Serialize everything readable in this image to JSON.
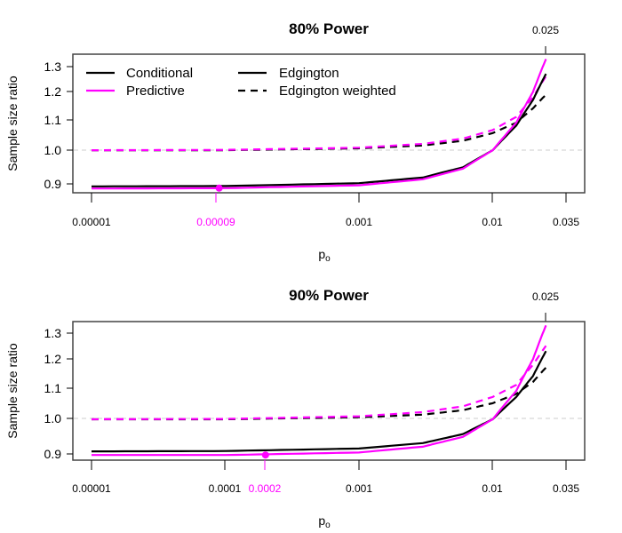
{
  "colors": {
    "conditional": "#000000",
    "predictive": "#ff00ff",
    "reference_line": "#cccccc",
    "frame": "#444444"
  },
  "legend": {
    "items": [
      {
        "label": "Conditional",
        "color": "#000000",
        "style": "solid"
      },
      {
        "label": "Predictive",
        "color": "#ff00ff",
        "style": "solid"
      },
      {
        "label": "Edgington",
        "color": "#000000",
        "style": "solid"
      },
      {
        "label": "Edgington weighted",
        "color": "#000000",
        "style": "dashed"
      }
    ]
  },
  "panels": [
    {
      "title": "80% Power",
      "top_tick_label": "0.025",
      "ylabel": "Sample size ratio",
      "xlabel": "p",
      "xlabel_sub": "o",
      "yticks": [
        "1.3",
        "1.2",
        "1.1",
        "1.0",
        "0.9"
      ],
      "xticks": [
        "0.00001",
        "0.00009",
        "0.001",
        "0.01",
        "0.035"
      ],
      "highlight_tick": "0.00009"
    },
    {
      "title": "90% Power",
      "top_tick_label": "0.025",
      "ylabel": "Sample size ratio",
      "xlabel": "p",
      "xlabel_sub": "o",
      "yticks": [
        "1.3",
        "1.2",
        "1.1",
        "1.0",
        "0.9"
      ],
      "xticks": [
        "0.00001",
        "0.0001",
        "0.0002",
        "0.001",
        "0.01",
        "0.035"
      ],
      "highlight_tick": "0.0002"
    }
  ],
  "chart_data": [
    {
      "type": "line",
      "title": "80% Power",
      "xlabel": "p_o",
      "ylabel": "Sample size ratio",
      "xscale": "log",
      "yscale": "log",
      "xlim": [
        1e-05,
        0.035
      ],
      "ylim": [
        0.88,
        1.33
      ],
      "xticks": [
        1e-05,
        9e-05,
        0.001,
        0.01,
        0.035
      ],
      "top_axis_ticks": [
        0.025
      ],
      "yticks": [
        0.9,
        1.0,
        1.1,
        1.2,
        1.3
      ],
      "reference_line": {
        "y": 1.0,
        "style": "dashed",
        "color": "#cccccc"
      },
      "grid": false,
      "legend_position": "top-left",
      "x": [
        1e-05,
        0.0001,
        0.001,
        0.003,
        0.006,
        0.01,
        0.015,
        0.02,
        0.025
      ],
      "series": [
        {
          "name": "Conditional - Edgington",
          "color": "#000000",
          "style": "solid",
          "values": [
            0.893,
            0.894,
            0.902,
            0.918,
            0.948,
            1.0,
            1.08,
            1.17,
            1.27
          ]
        },
        {
          "name": "Predictive - Edgington",
          "color": "#ff00ff",
          "style": "solid",
          "values": [
            0.887,
            0.888,
            0.896,
            0.913,
            0.944,
            1.0,
            1.09,
            1.2,
            1.33
          ]
        },
        {
          "name": "Conditional - Edgington weighted",
          "color": "#000000",
          "style": "dashed",
          "values": [
            1.0,
            1.0,
            1.006,
            1.015,
            1.03,
            1.055,
            1.09,
            1.14,
            1.19
          ]
        },
        {
          "name": "Predictive - Edgington weighted",
          "color": "#ff00ff",
          "style": "dashed",
          "values": [
            1.0,
            1.001,
            1.008,
            1.02,
            1.037,
            1.065,
            1.11,
            1.18,
            1.26
          ]
        }
      ],
      "annotations": [
        {
          "type": "point",
          "x": 9e-05,
          "y": 0.888,
          "color": "#ff00ff",
          "label": "0.00009"
        }
      ]
    },
    {
      "type": "line",
      "title": "90% Power",
      "xlabel": "p_o",
      "ylabel": "Sample size ratio",
      "xscale": "log",
      "yscale": "log",
      "xlim": [
        1e-05,
        0.035
      ],
      "ylim": [
        0.88,
        1.33
      ],
      "xticks": [
        1e-05,
        0.0001,
        0.0002,
        0.001,
        0.01,
        0.035
      ],
      "top_axis_ticks": [
        0.025
      ],
      "yticks": [
        0.9,
        1.0,
        1.1,
        1.2,
        1.3
      ],
      "reference_line": {
        "y": 1.0,
        "style": "dashed",
        "color": "#cccccc"
      },
      "grid": false,
      "x": [
        1e-05,
        0.0001,
        0.001,
        0.003,
        0.006,
        0.01,
        0.015,
        0.02,
        0.025
      ],
      "series": [
        {
          "name": "Conditional - Edgington",
          "color": "#000000",
          "style": "solid",
          "values": [
            0.907,
            0.908,
            0.915,
            0.93,
            0.956,
            1.0,
            1.07,
            1.14,
            1.23
          ]
        },
        {
          "name": "Predictive - Edgington",
          "color": "#ff00ff",
          "style": "solid",
          "values": [
            0.897,
            0.897,
            0.904,
            0.92,
            0.948,
            1.0,
            1.09,
            1.2,
            1.33
          ]
        },
        {
          "name": "Conditional - Edgington weighted",
          "color": "#000000",
          "style": "dashed",
          "values": [
            1.0,
            1.0,
            1.006,
            1.014,
            1.028,
            1.05,
            1.08,
            1.12,
            1.17
          ]
        },
        {
          "name": "Predictive - Edgington weighted",
          "color": "#ff00ff",
          "style": "dashed",
          "values": [
            1.0,
            1.001,
            1.009,
            1.022,
            1.04,
            1.07,
            1.11,
            1.18,
            1.25
          ]
        }
      ],
      "annotations": [
        {
          "type": "point",
          "x": 0.0002,
          "y": 0.897,
          "color": "#ff00ff",
          "label": "0.0002"
        }
      ]
    }
  ]
}
